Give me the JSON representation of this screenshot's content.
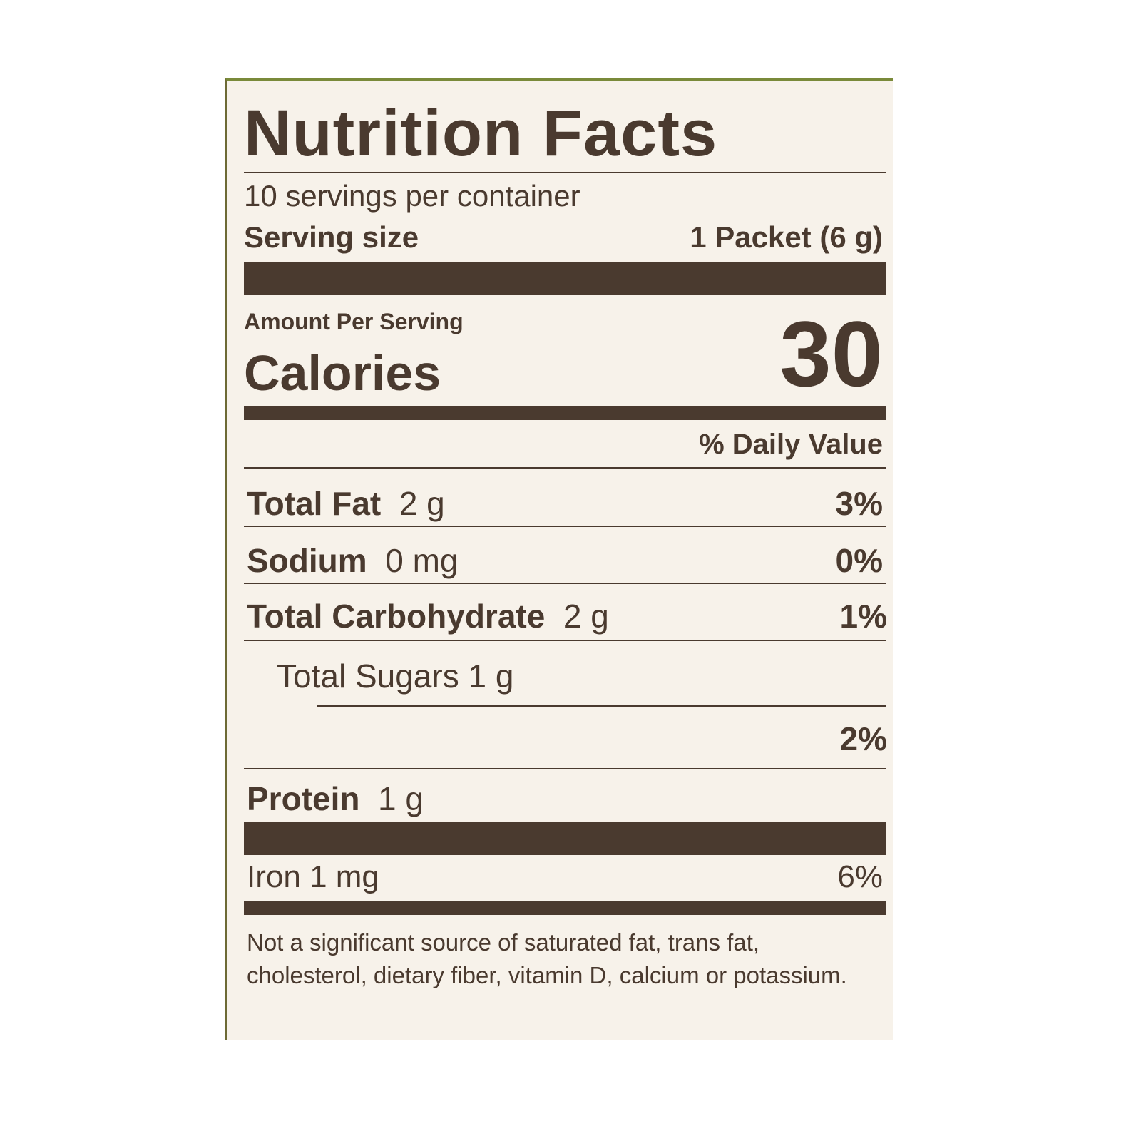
{
  "title": "Nutrition Facts",
  "servings_per_container": "10 servings per container",
  "serving_size_label": "Serving size",
  "serving_size_value": "1 Packet (6 g)",
  "amount_per_serving": "Amount Per Serving",
  "calories_label": "Calories",
  "calories_value": "30",
  "daily_value_header": "% Daily Value",
  "nutrients": [
    {
      "name": "Total Fat",
      "amount": "2 g",
      "dv": "3%"
    },
    {
      "name": "Sodium",
      "amount": "0 mg",
      "dv": "0%"
    },
    {
      "name": "Total Carbohydrate",
      "amount": "2 g",
      "dv": "1%"
    },
    {
      "name": "Total Sugars",
      "amount": "1 g",
      "dv": ""
    },
    {
      "name": "",
      "amount": "",
      "dv": "2%"
    },
    {
      "name": "Protein",
      "amount": "1 g",
      "dv": ""
    }
  ],
  "iron": {
    "name": "Iron",
    "amount": "1 mg",
    "dv": "6%"
  },
  "footnote": "Not a significant source of saturated fat, trans fat, cholesterol, dietary fiber, vitamin D, calcium or potassium.",
  "colors": {
    "ink": "#4a3a2f",
    "paper": "#f7f2ea",
    "border": "#7a8a3a"
  }
}
